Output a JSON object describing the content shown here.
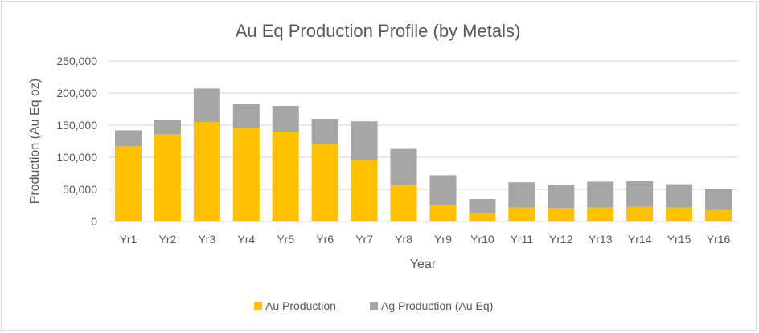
{
  "chart_data": {
    "type": "bar",
    "stacked": true,
    "title": "Au Eq Production Profile  (by Metals)",
    "xlabel": "Year",
    "ylabel": "Production (Au Eq oz)",
    "ylim": [
      0,
      250000
    ],
    "yticks": [
      0,
      50000,
      100000,
      150000,
      200000,
      250000
    ],
    "ytick_labels": [
      "0",
      "50,000",
      "100,000",
      "150,000",
      "200,000",
      "250,000"
    ],
    "grid": true,
    "legend_position": "bottom",
    "categories": [
      "Yr1",
      "Yr2",
      "Yr3",
      "Yr4",
      "Yr5",
      "Yr6",
      "Yr7",
      "Yr8",
      "Yr9",
      "Yr10",
      "Yr11",
      "Yr12",
      "Yr13",
      "Yr14",
      "Yr15",
      "Yr16"
    ],
    "series": [
      {
        "name": "Au Production",
        "color": "#ffc000",
        "values": [
          117000,
          136000,
          155000,
          145000,
          140000,
          121000,
          95000,
          57000,
          26000,
          13000,
          22000,
          21000,
          22000,
          23000,
          22000,
          18000
        ]
      },
      {
        "name": "Ag Production (Au Eq)",
        "color": "#a5a5a5",
        "values": [
          25000,
          22000,
          52000,
          38000,
          40000,
          39000,
          61000,
          56000,
          46000,
          22000,
          39000,
          36000,
          40000,
          40000,
          36000,
          33000
        ]
      }
    ]
  }
}
